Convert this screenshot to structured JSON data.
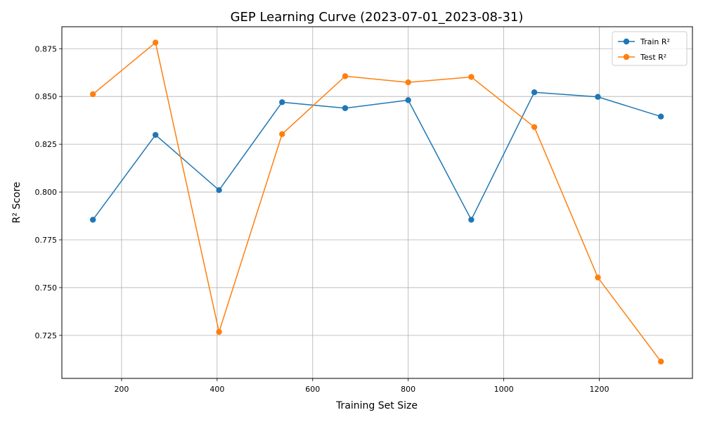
{
  "chart_data": {
    "type": "line",
    "title": "GEP Learning Curve (2023-07-01_2023-08-31)",
    "xlabel": "Training Set Size",
    "ylabel": "R² Score",
    "xlim": [
      75,
      1395
    ],
    "ylim": [
      0.7025,
      0.8865
    ],
    "xticks": [
      200,
      400,
      600,
      800,
      1000,
      1200
    ],
    "yticks": [
      0.725,
      0.75,
      0.775,
      0.8,
      0.825,
      0.85,
      0.875
    ],
    "grid": true,
    "legend_position": "top-right",
    "x": [
      140,
      271,
      404,
      536,
      668,
      800,
      932,
      1064,
      1197,
      1329
    ],
    "series": [
      {
        "name": "Train R²",
        "color": "#1f77b4",
        "values": [
          0.7855,
          0.8299,
          0.801,
          0.847,
          0.8439,
          0.8481,
          0.7855,
          0.8522,
          0.8498,
          0.8395
        ]
      },
      {
        "name": "Test R²",
        "color": "#ff7f0e",
        "values": [
          0.8512,
          0.8782,
          0.7268,
          0.8303,
          0.8606,
          0.8574,
          0.8602,
          0.834,
          0.7553,
          0.7113
        ]
      }
    ]
  }
}
